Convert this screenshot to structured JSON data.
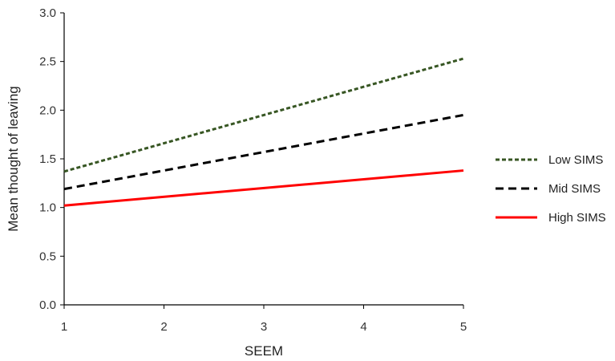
{
  "chart_data": {
    "type": "line",
    "title": "",
    "xlabel": "SEEM",
    "ylabel": "Mean thought of leaving",
    "x": [
      1,
      5
    ],
    "xticks": [
      "1",
      "2",
      "3",
      "4",
      "5"
    ],
    "yticks": [
      "0.0",
      "0.5",
      "1.0",
      "1.5",
      "2.0",
      "2.5",
      "3.0"
    ],
    "xlim": [
      1,
      5
    ],
    "ylim": [
      0,
      3
    ],
    "grid": false,
    "legend": "right",
    "series": [
      {
        "name": "Low SIMS",
        "values": [
          1.37,
          2.53
        ],
        "color": "#375623",
        "style": "dotted"
      },
      {
        "name": "Mid SIMS",
        "values": [
          1.19,
          1.95
        ],
        "color": "#000000",
        "style": "dashed"
      },
      {
        "name": "High SIMS",
        "values": [
          1.02,
          1.38
        ],
        "color": "#ff0000",
        "style": "solid"
      }
    ]
  }
}
